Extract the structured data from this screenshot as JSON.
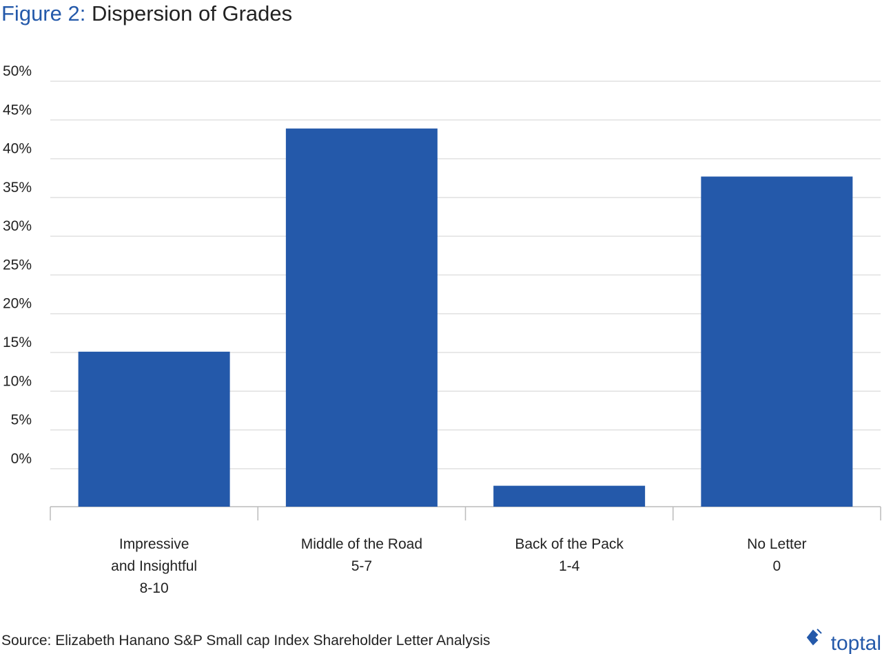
{
  "chart_data": {
    "type": "bar",
    "figure_label": "Figure 2:",
    "title": "Dispersion of Grades",
    "categories": [
      [
        "Impressive",
        "and Insightful",
        "8-10"
      ],
      [
        "Middle of the Road",
        "5-7"
      ],
      [
        "Back of the Pack",
        "1-4"
      ],
      [
        "No Letter",
        "0"
      ]
    ],
    "values": [
      15.1,
      43.9,
      -2.2,
      37.7
    ],
    "color": "#2459aa",
    "ylim": [
      -4.9,
      50
    ],
    "yticks": [
      {
        "value": 0,
        "label": "0%"
      },
      {
        "value": 5,
        "label": "5%"
      },
      {
        "value": 10,
        "label": "10%"
      },
      {
        "value": 15,
        "label": "15%"
      },
      {
        "value": 20,
        "label": "20%"
      },
      {
        "value": 25,
        "label": "25%"
      },
      {
        "value": 30,
        "label": "30%"
      },
      {
        "value": 35,
        "label": "35%"
      },
      {
        "value": 40,
        "label": "40%"
      },
      {
        "value": 45,
        "label": "45%"
      },
      {
        "value": 50,
        "label": "50%"
      }
    ],
    "grid": true,
    "source": "Source: Elizabeth Hanano S&P Small cap Index Shareholder Letter Analysis",
    "logo": "toptal"
  }
}
